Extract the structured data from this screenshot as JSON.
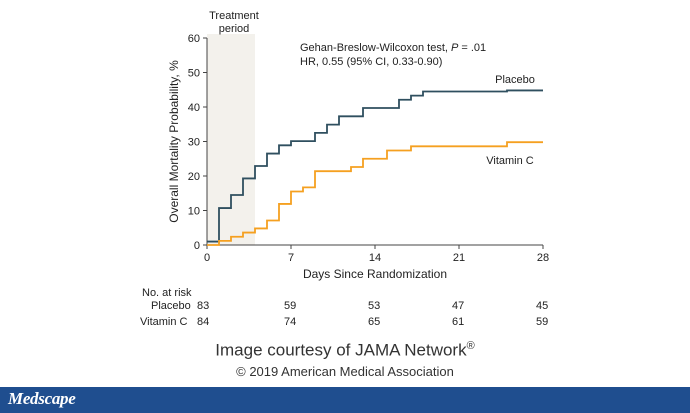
{
  "chart_data": {
    "type": "line",
    "step": true,
    "title": "",
    "xlabel": "Days Since Randomization",
    "ylabel": "Overall Mortality Probability, %",
    "xlim": [
      0,
      28
    ],
    "ylim": [
      0,
      60
    ],
    "xticks": [
      0,
      7,
      14,
      21,
      28
    ],
    "yticks": [
      0,
      10,
      20,
      30,
      40,
      50,
      60
    ],
    "grid": false,
    "shaded_region": {
      "label": "Treatment period",
      "x_start": 0,
      "x_end": 4
    },
    "annotation": {
      "line1_prefix": "Gehan-Breslow-Wilcoxon test, ",
      "line1_p": "P",
      "line1_suffix": " = .01",
      "line2": "HR, 0.55 (95% CI, 0.33-0.90)"
    },
    "series": [
      {
        "name": "Placebo",
        "color": "#2f4f5f",
        "x": [
          0,
          1,
          2,
          3,
          4,
          5,
          6,
          7,
          9,
          10,
          11,
          13,
          16,
          17,
          18,
          25,
          28
        ],
        "y": [
          1,
          10.7,
          14.5,
          19.3,
          22.9,
          26.5,
          28.9,
          30.1,
          32.5,
          34.9,
          37.3,
          39.7,
          42.1,
          43.3,
          44.5,
          44.8,
          44.8
        ]
      },
      {
        "name": "Vitamin C",
        "color": "#f5a020",
        "x": [
          0,
          1,
          2,
          3,
          4,
          5,
          6,
          7,
          8,
          9,
          12,
          13,
          15,
          17,
          25,
          28
        ],
        "y": [
          0,
          1.2,
          2.4,
          3.6,
          4.8,
          7.1,
          11.9,
          15.5,
          16.7,
          21.4,
          22.6,
          25.0,
          27.4,
          28.6,
          29.8,
          29.8
        ]
      }
    ]
  },
  "risk_table": {
    "title": "No. at risk",
    "days": [
      0,
      7,
      14,
      21,
      28
    ],
    "rows": [
      {
        "label": "Placebo",
        "values": [
          "83",
          "59",
          "53",
          "47",
          "45"
        ]
      },
      {
        "label": "Vitamin C",
        "values": [
          "84",
          "74",
          "65",
          "61",
          "59"
        ]
      }
    ]
  },
  "credit": {
    "line1": "Image courtesy of JAMA Network",
    "registered": "®",
    "line2": "© 2019 American Medical Association"
  },
  "footer": {
    "brand": "Medscape",
    "color": "#1f4e8f"
  }
}
